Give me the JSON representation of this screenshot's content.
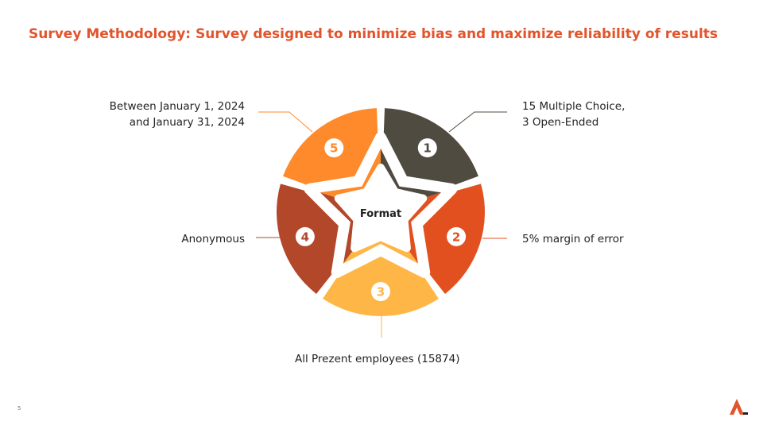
{
  "title": "Survey Methodology: Survey designed to minimize bias and maximize reliability of results",
  "center_label": "Format",
  "segments": [
    {
      "number": "1",
      "color": "#4F4B40",
      "text": [
        "15 Multiple Choice,",
        "3 Open-Ended"
      ]
    },
    {
      "number": "2",
      "color": "#E2501F",
      "text": [
        "5% margin of error"
      ]
    },
    {
      "number": "3",
      "color": "#FEB647",
      "text": [
        "All Prezent employees (15874)"
      ]
    },
    {
      "number": "4",
      "color": "#B2472A",
      "text": [
        "Anonymous"
      ]
    },
    {
      "number": "5",
      "color": "#FE8A2B",
      "text": [
        "Between January 1, 2024",
        "and January 31, 2024"
      ]
    }
  ],
  "page_number": "5"
}
